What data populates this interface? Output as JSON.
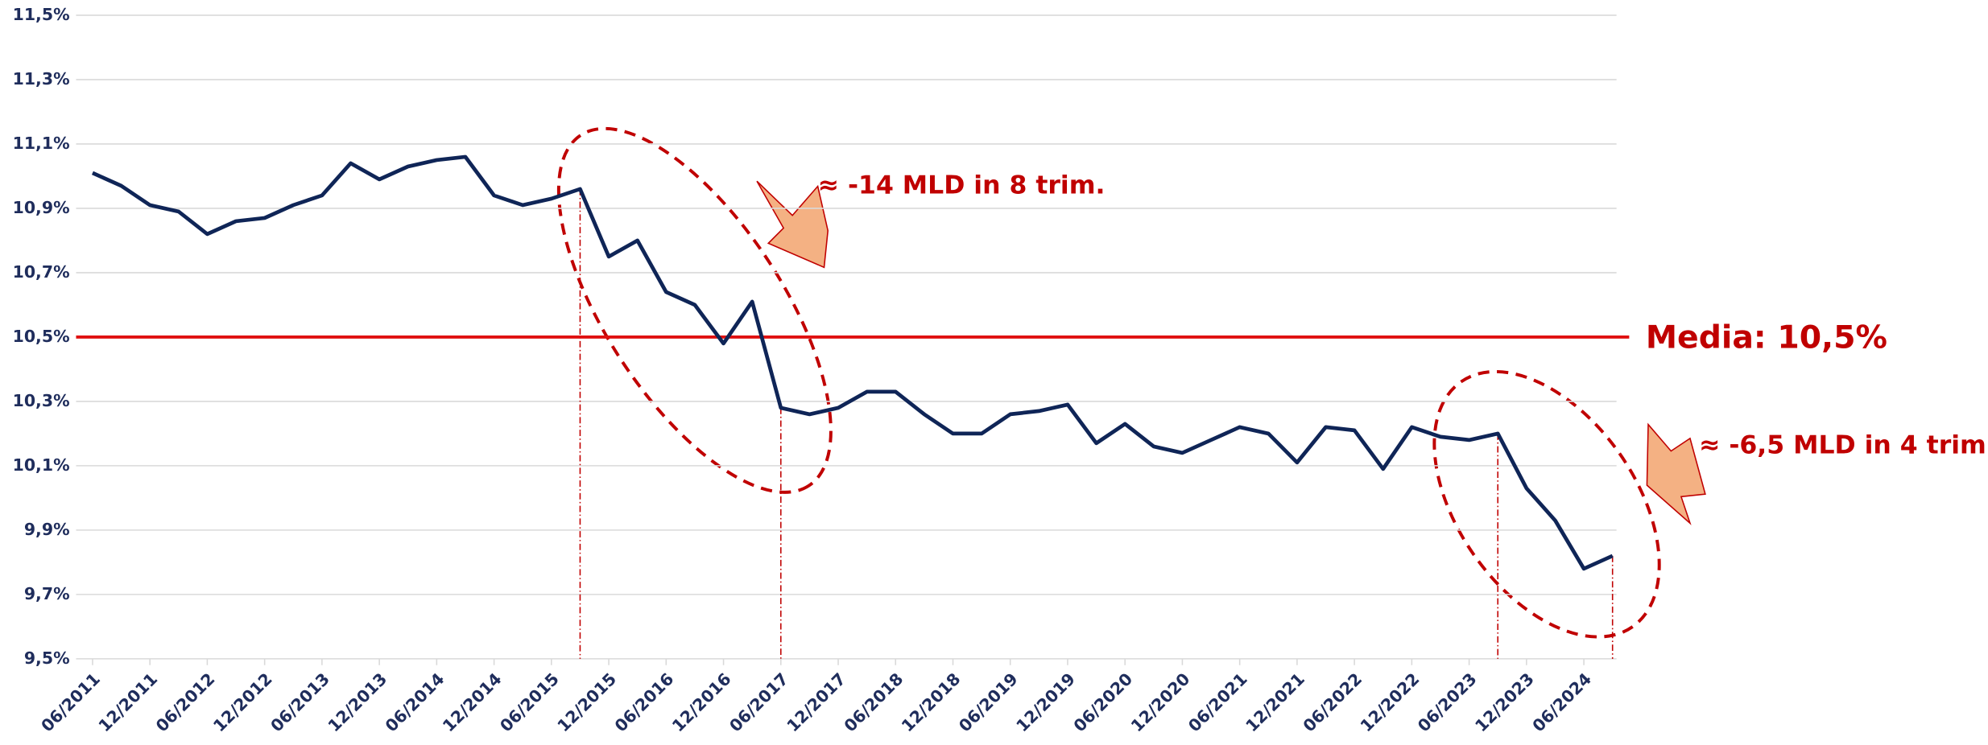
{
  "chart_data": {
    "type": "line",
    "categories": [
      "06/2011",
      null,
      "12/2011",
      null,
      "06/2012",
      null,
      "12/2012",
      null,
      "06/2013",
      null,
      "12/2013",
      null,
      "06/2014",
      null,
      "12/2014",
      null,
      "06/2015",
      null,
      "12/2015",
      null,
      "06/2016",
      null,
      "12/2016",
      null,
      "06/2017",
      null,
      "12/2017",
      null,
      "06/2018",
      null,
      "12/2018",
      null,
      "06/2019",
      null,
      "12/2019",
      null,
      "06/2020",
      null,
      "12/2020",
      null,
      "06/2021",
      null,
      "12/2021",
      null,
      "06/2022",
      null,
      "12/2022",
      null,
      "06/2023",
      null,
      "12/2023",
      null,
      "06/2024",
      null
    ],
    "series": [
      {
        "color": "#0f2557",
        "values": [
          11.01,
          10.97,
          10.91,
          10.89,
          10.82,
          10.86,
          10.87,
          10.91,
          10.94,
          11.04,
          10.99,
          11.03,
          11.05,
          11.06,
          10.94,
          10.91,
          10.93,
          10.96,
          10.75,
          10.8,
          10.64,
          10.6,
          10.48,
          10.61,
          10.28,
          10.26,
          10.28,
          10.33,
          10.33,
          10.26,
          10.2,
          10.2,
          10.26,
          10.27,
          10.29,
          10.17,
          10.23,
          10.16,
          10.14,
          10.18,
          10.22,
          10.2,
          10.11,
          10.22,
          10.21,
          10.09,
          10.22,
          10.19,
          10.18,
          10.2,
          10.03,
          9.93,
          9.78,
          9.82
        ]
      }
    ],
    "mean": 10.5,
    "mean_color": "#e01010",
    "mean_label": "Media: 10,5%",
    "annotations": [
      "≈ -14 MLD in 8 trim.",
      "≈ -6,5 MLD in 4 trim."
    ],
    "ylim": [
      9.5,
      11.5
    ],
    "yticks": [
      {
        "value": 9.5,
        "label": "9,5%"
      },
      {
        "value": 9.7,
        "label": "9,7%"
      },
      {
        "value": 9.9,
        "label": "9,9%"
      },
      {
        "value": 10.1,
        "label": "10,1%"
      },
      {
        "value": 10.3,
        "label": "10,3%"
      },
      {
        "value": 10.5,
        "label": "10,5%"
      },
      {
        "value": 10.7,
        "label": "10,7%"
      },
      {
        "value": 10.9,
        "label": "10,9%"
      },
      {
        "value": 11.1,
        "label": "11,1%"
      },
      {
        "value": 11.3,
        "label": "11,3%"
      },
      {
        "value": 11.5,
        "label": "11,5%"
      }
    ],
    "grid": true
  }
}
